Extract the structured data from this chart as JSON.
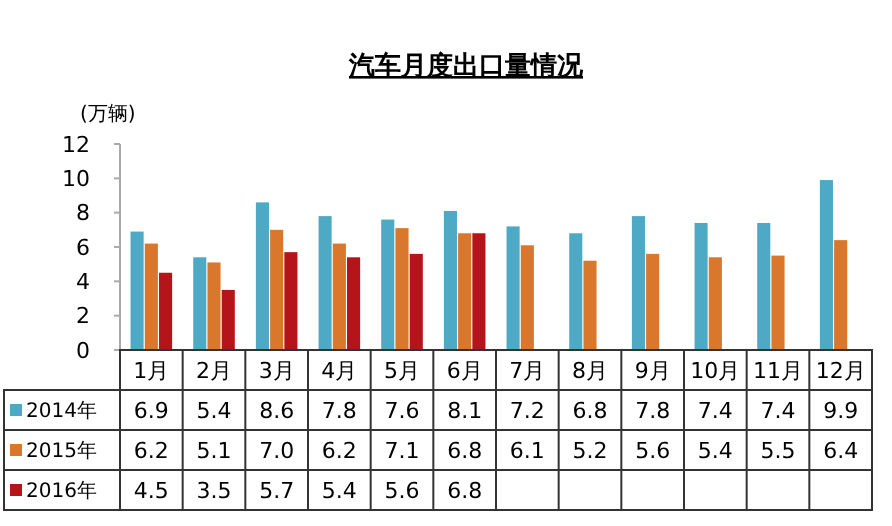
{
  "chart_data": {
    "type": "bar",
    "title": "汽车月度出口量情况",
    "ylabel": "(万辆)",
    "categories": [
      "1月",
      "2月",
      "3月",
      "4月",
      "5月",
      "6月",
      "7月",
      "8月",
      "9月",
      "10月",
      "11月",
      "12月"
    ],
    "series": [
      {
        "name": "2014年",
        "color": "#4eaac4",
        "values": [
          6.9,
          5.4,
          8.6,
          7.8,
          7.6,
          8.1,
          7.2,
          6.8,
          7.8,
          7.4,
          7.4,
          9.9
        ],
        "value_labels": [
          "6.9",
          "5.4",
          "8.6",
          "7.8",
          "7.6",
          "8.1",
          "7.2",
          "6.8",
          "7.8",
          "7.4",
          "7.4",
          "9.9"
        ]
      },
      {
        "name": "2015年",
        "color": "#d9782d",
        "values": [
          6.2,
          5.1,
          7.0,
          6.2,
          7.1,
          6.8,
          6.1,
          5.2,
          5.6,
          5.4,
          5.5,
          6.4
        ],
        "value_labels": [
          "6.2",
          "5.1",
          "7.0",
          "6.2",
          "7.1",
          "6.8",
          "6.1",
          "5.2",
          "5.6",
          "5.4",
          "5.5",
          "6.4"
        ]
      },
      {
        "name": "2016年",
        "color": "#b5141b",
        "values": [
          4.5,
          3.5,
          5.7,
          5.4,
          5.6,
          6.8,
          null,
          null,
          null,
          null,
          null,
          null
        ],
        "value_labels": [
          "4.5",
          "3.5",
          "5.7",
          "5.4",
          "5.6",
          "6.8",
          null,
          null,
          null,
          null,
          null,
          null
        ]
      }
    ],
    "ylim": [
      0,
      12
    ],
    "yticks": [
      0,
      2,
      4,
      6,
      8,
      10,
      12
    ],
    "grid": false,
    "legend": "bottom"
  }
}
